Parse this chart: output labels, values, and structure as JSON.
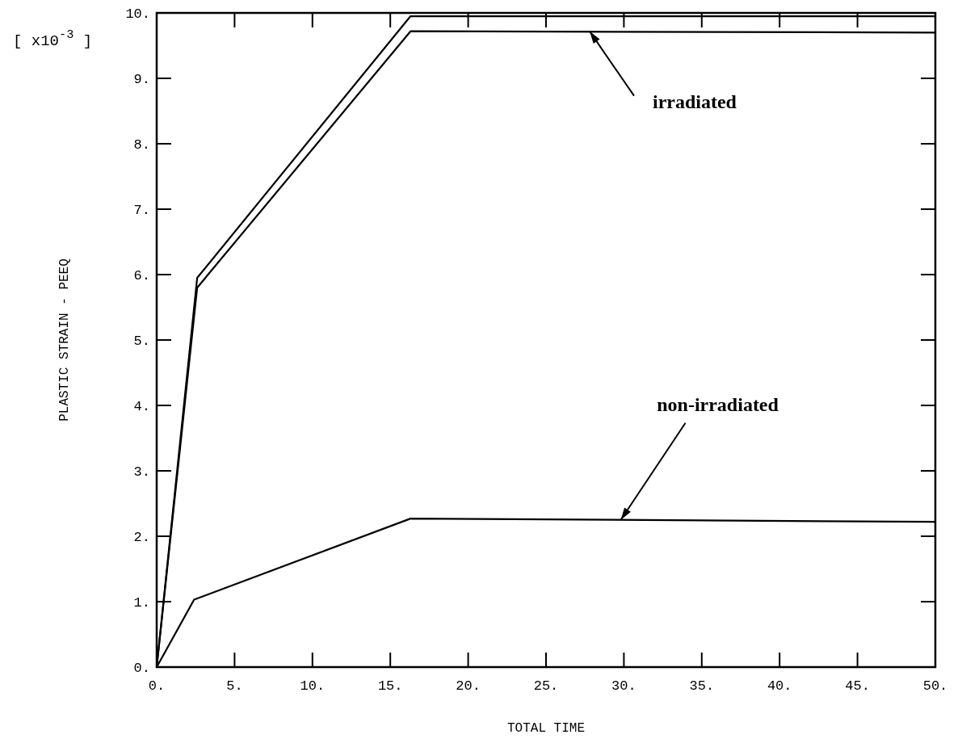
{
  "chart_data": {
    "type": "line",
    "xlabel": "TOTAL TIME",
    "ylabel": "PLASTIC STRAIN - PEEQ",
    "xlim": [
      0,
      50
    ],
    "ylim": [
      0,
      10
    ],
    "xticks": [
      {
        "value": 0,
        "label": "0."
      },
      {
        "value": 5,
        "label": "5."
      },
      {
        "value": 10,
        "label": "10."
      },
      {
        "value": 15,
        "label": "15."
      },
      {
        "value": 20,
        "label": "20."
      },
      {
        "value": 25,
        "label": "25."
      },
      {
        "value": 30,
        "label": "30."
      },
      {
        "value": 35,
        "label": "35."
      },
      {
        "value": 40,
        "label": "40."
      },
      {
        "value": 45,
        "label": "45."
      },
      {
        "value": 50,
        "label": "50."
      }
    ],
    "yticks": [
      {
        "value": 0,
        "label": "0."
      },
      {
        "value": 1,
        "label": "1."
      },
      {
        "value": 2,
        "label": "2."
      },
      {
        "value": 3,
        "label": "3."
      },
      {
        "value": 4,
        "label": "4."
      },
      {
        "value": 5,
        "label": "5."
      },
      {
        "value": 6,
        "label": "6."
      },
      {
        "value": 7,
        "label": "7."
      },
      {
        "value": 8,
        "label": "8."
      },
      {
        "value": 9,
        "label": "9."
      },
      {
        "value": 10,
        "label": "10."
      }
    ],
    "grid": false,
    "marker": "none",
    "line_style": "solid",
    "series": [
      {
        "color": "#000000",
        "x": [
          0,
          2.6,
          16.3,
          50
        ],
        "values": [
          0,
          5.95,
          9.95,
          9.95
        ]
      },
      {
        "color": "#000000",
        "x": [
          0,
          2.6,
          16.3,
          50
        ],
        "values": [
          0,
          5.8,
          9.72,
          9.7
        ]
      },
      {
        "color": "#000000",
        "x": [
          0,
          2.4,
          16.3,
          50
        ],
        "values": [
          0,
          1.03,
          2.27,
          2.22
        ]
      }
    ],
    "annotations": [
      "[ x10$^{-3}$ ]",
      {
        "text": "irradiated",
        "x": 27.8,
        "y": 9.72
      },
      {
        "text": "non-irradiated",
        "x": 29.8,
        "y": 2.25
      }
    ]
  }
}
